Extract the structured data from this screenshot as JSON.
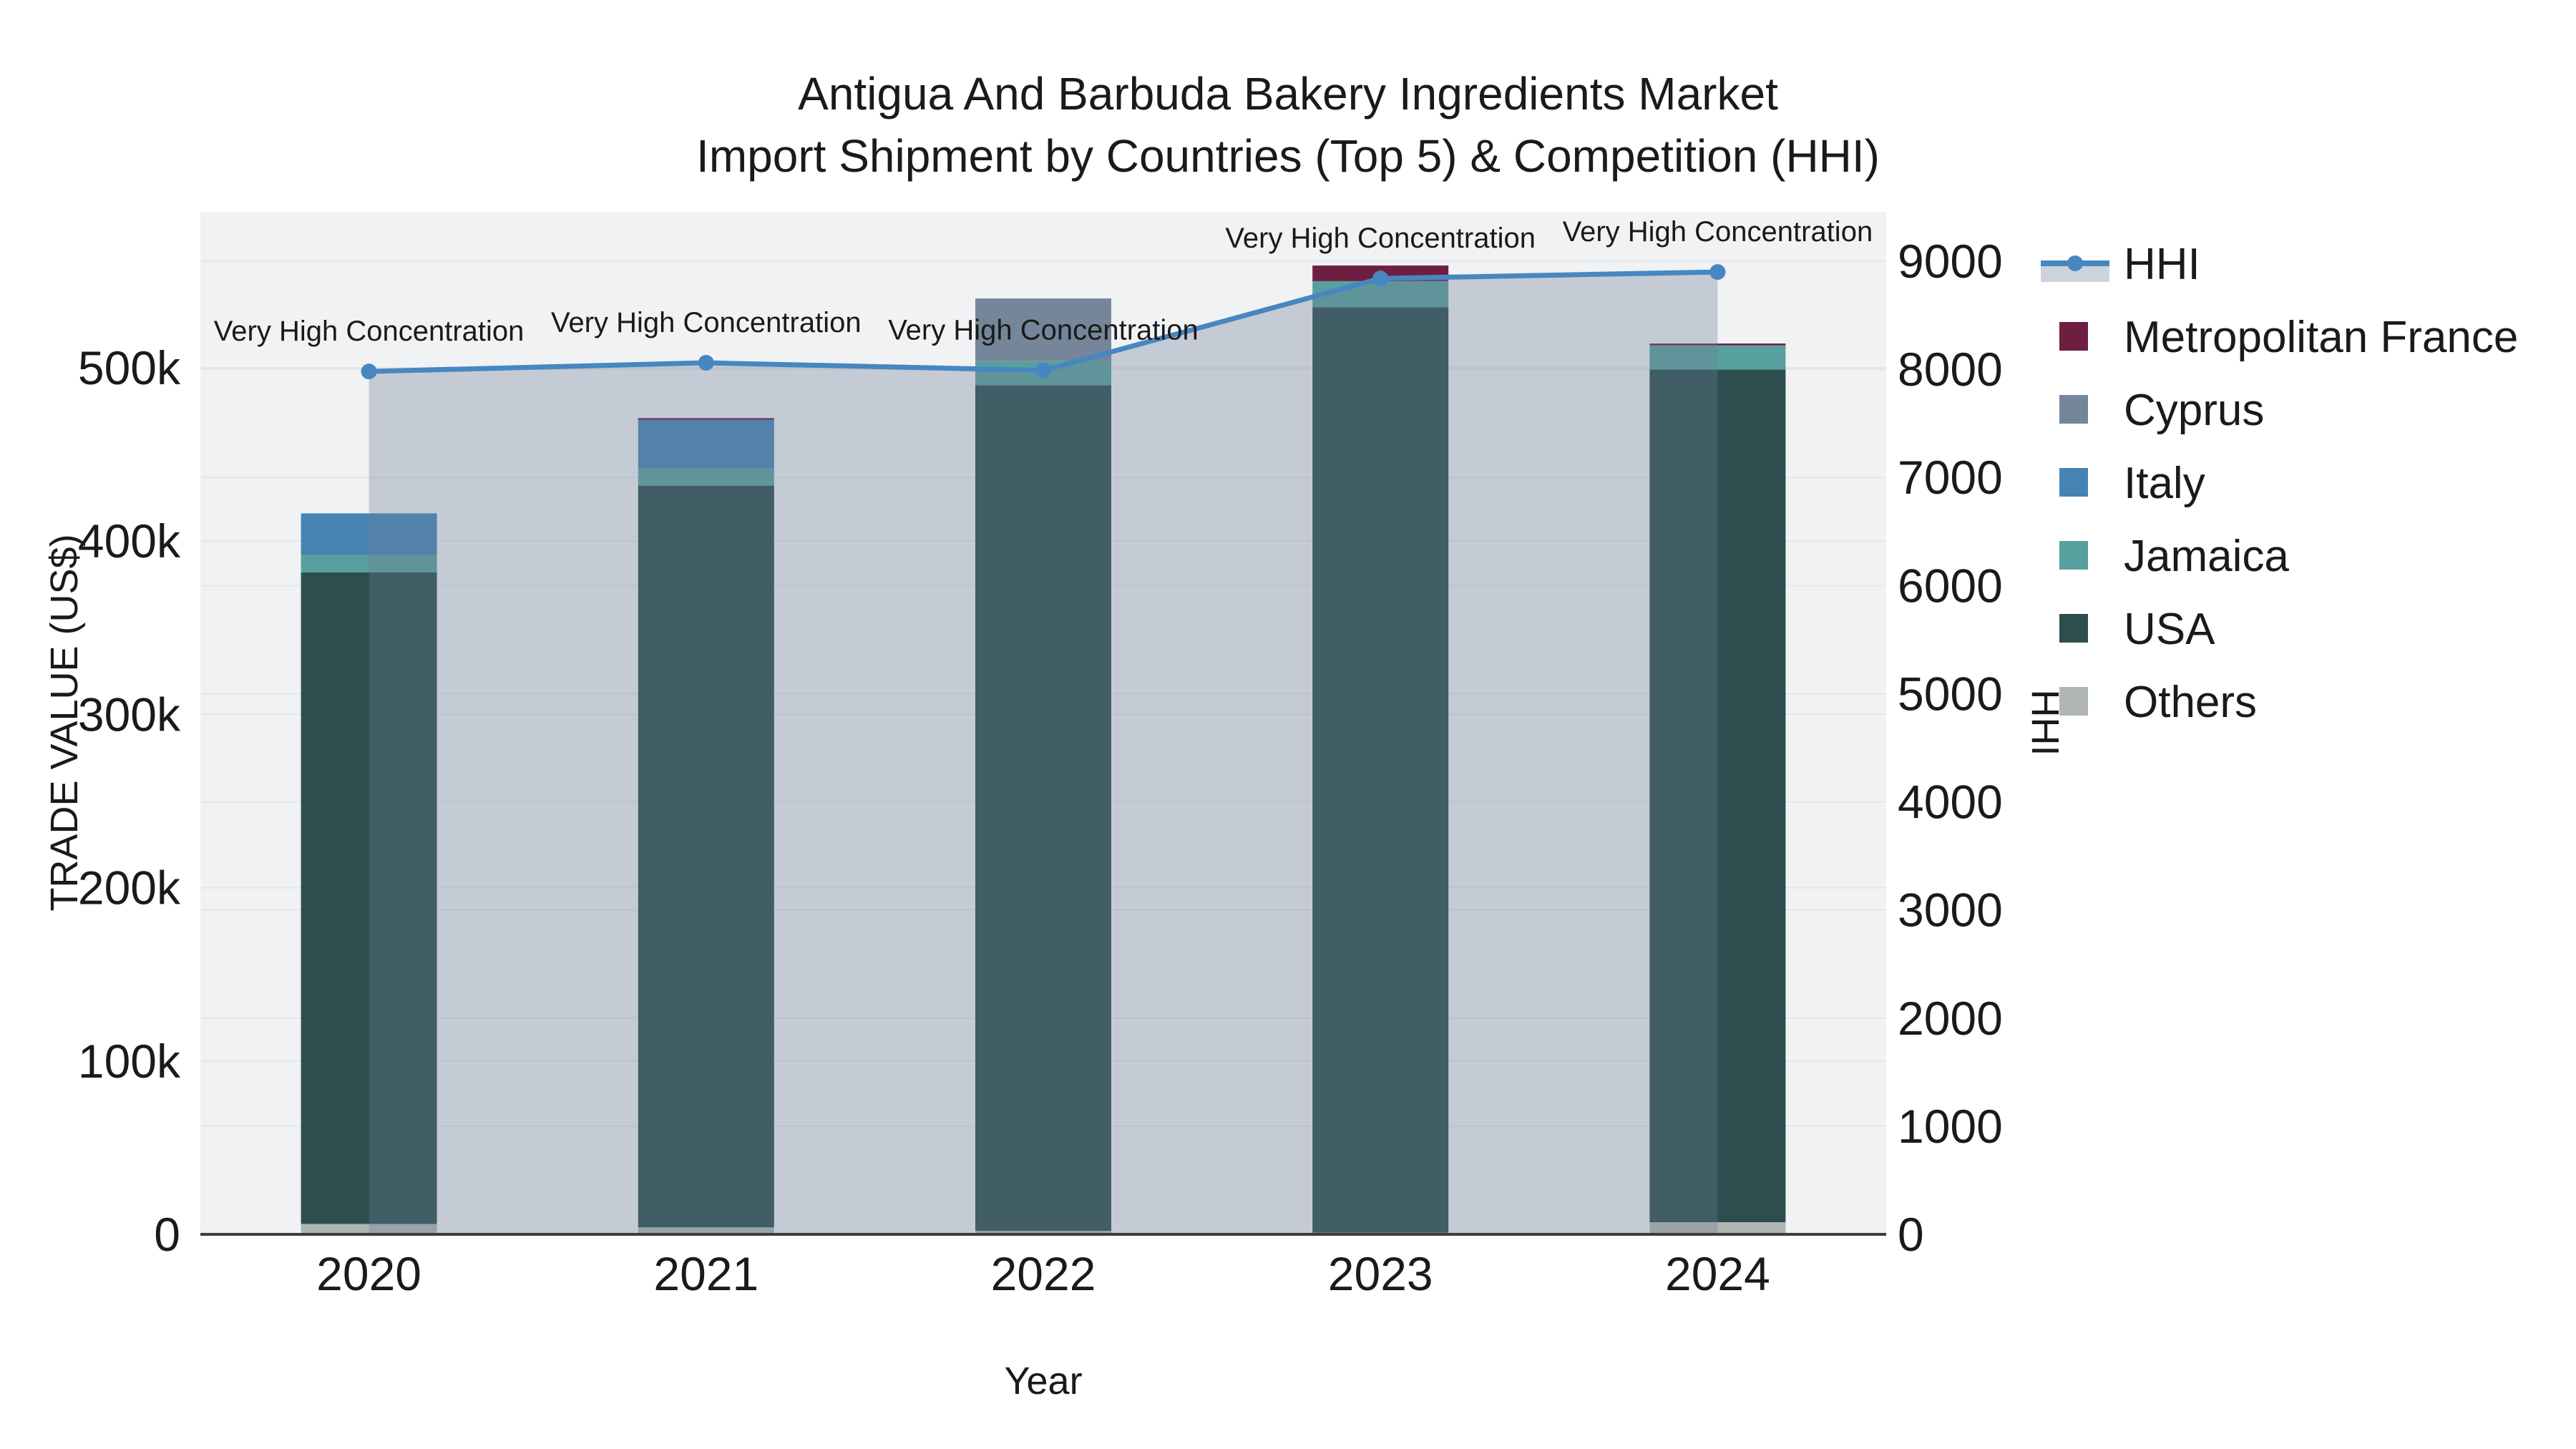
{
  "title": {
    "line1": "Antigua And Barbuda Bakery Ingredients Market",
    "line2": "Import Shipment by Countries (Top 5) & Competition (HHI)"
  },
  "chart_data": {
    "type": "composite",
    "subtypes": [
      "stacked-bar",
      "line-with-area"
    ],
    "x": {
      "title": "Year",
      "categories": [
        "2020",
        "2021",
        "2022",
        "2023",
        "2024"
      ]
    },
    "y_left": {
      "title": "TRADE VALUE (US$)",
      "range": [
        0,
        590000
      ],
      "ticks": [
        {
          "value": 0,
          "label": "0"
        },
        {
          "value": 100000,
          "label": "100k"
        },
        {
          "value": 200000,
          "label": "200k"
        },
        {
          "value": 300000,
          "label": "300k"
        },
        {
          "value": 400000,
          "label": "400k"
        },
        {
          "value": 500000,
          "label": "500k"
        }
      ]
    },
    "y_right": {
      "title": "HHI",
      "range": [
        0,
        9460
      ],
      "ticks": [
        {
          "value": 0,
          "label": "0"
        },
        {
          "value": 1000,
          "label": "1000"
        },
        {
          "value": 2000,
          "label": "2000"
        },
        {
          "value": 3000,
          "label": "3000"
        },
        {
          "value": 4000,
          "label": "4000"
        },
        {
          "value": 5000,
          "label": "5000"
        },
        {
          "value": 6000,
          "label": "6000"
        },
        {
          "value": 7000,
          "label": "7000"
        },
        {
          "value": 8000,
          "label": "8000"
        },
        {
          "value": 9000,
          "label": "9000"
        }
      ]
    },
    "bar_series": [
      {
        "name": "Others",
        "color": "#b0b6b4",
        "values_usd": [
          6000,
          4000,
          2000,
          1000,
          7000
        ]
      },
      {
        "name": "USA",
        "color": "#2c4e4e",
        "values_usd": [
          376000,
          428000,
          488000,
          534000,
          492000
        ]
      },
      {
        "name": "Jamaica",
        "color": "#58a09e",
        "values_usd": [
          10000,
          10000,
          14000,
          15000,
          14000
        ]
      },
      {
        "name": "Italy",
        "color": "#4583b5",
        "values_usd": [
          24000,
          28000,
          0,
          0,
          0
        ]
      },
      {
        "name": "Cyprus",
        "color": "#75869a",
        "values_usd": [
          0,
          0,
          36000,
          0,
          0
        ]
      },
      {
        "name": "Metropolitan France",
        "color": "#6e1e40",
        "values_usd": [
          0,
          1000,
          0,
          9000,
          1000
        ]
      }
    ],
    "totals_usd": [
      416000,
      471000,
      540000,
      559000,
      514000
    ],
    "line_series": {
      "name": "HHI",
      "color": "#4787c1",
      "area_fill": "rgba(108,124,150,0.33)",
      "values": [
        7980,
        8060,
        7990,
        8840,
        8900
      ]
    },
    "annotations": [
      {
        "x": "2020",
        "text": "Very High Concentration"
      },
      {
        "x": "2021",
        "text": "Very High Concentration"
      },
      {
        "x": "2022",
        "text": "Very High Concentration"
      },
      {
        "x": "2023",
        "text": "Very High Concentration"
      },
      {
        "x": "2024",
        "text": "Very High Concentration"
      }
    ],
    "legend": {
      "position": "top-right",
      "items": [
        "HHI",
        "Metropolitan France",
        "Cyprus",
        "Italy",
        "Jamaica",
        "USA",
        "Others"
      ]
    },
    "style": {
      "plot_bg": "#f1f2f4",
      "grid": "#e3e6ea",
      "axis_line": "#3d3d3d",
      "text": "#1a1a1a",
      "legend_band": "#ccd3dc"
    }
  }
}
